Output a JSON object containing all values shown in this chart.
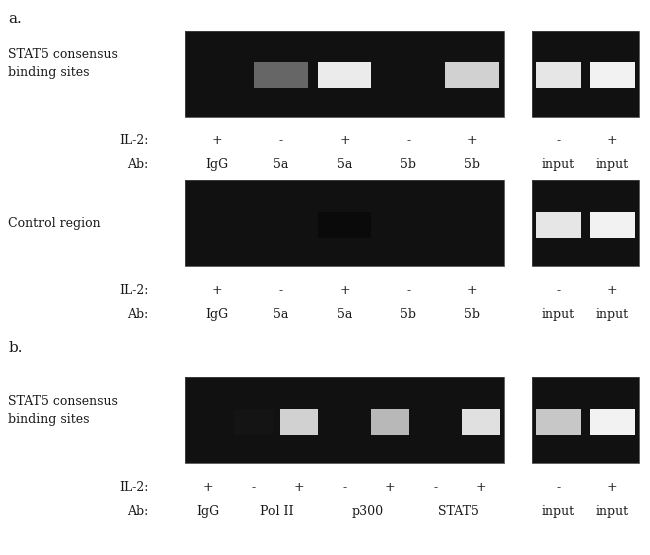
{
  "background_color": "#ffffff",
  "fig_width": 6.5,
  "fig_height": 5.55,
  "panel_a_label": "a.",
  "panel_b_label": "b.",
  "text_color": "#1a1a1a",
  "label_fontsize": 9,
  "panel_label_fontsize": 11,
  "a_row1_il2": [
    "+",
    "-",
    "+",
    "-",
    "+"
  ],
  "a_row1_ab": [
    "IgG",
    "5a",
    "5a",
    "5b",
    "5b"
  ],
  "a_row1_input_il2": [
    "-",
    "+"
  ],
  "a_row1_input_ab": [
    "input",
    "input"
  ],
  "a_row2_il2": [
    "+",
    "-",
    "+",
    "-",
    "+"
  ],
  "a_row2_ab": [
    "IgG",
    "5a",
    "5a",
    "5b",
    "5b"
  ],
  "a_row2_input_il2": [
    "-",
    "+"
  ],
  "a_row2_input_ab": [
    "input",
    "input"
  ],
  "b_row1_il2": [
    "+",
    "-",
    "+",
    "-",
    "+",
    "-",
    "+"
  ],
  "b_row1_input_il2": [
    "-",
    "+"
  ],
  "b_row1_input_ab": [
    "input",
    "input"
  ],
  "a_row1_bands": [
    0.0,
    0.4,
    0.92,
    0.0,
    0.82
  ],
  "a_row1_input_bands": [
    0.9,
    0.95
  ],
  "a_row2_bands": [
    0.0,
    0.0,
    0.04,
    0.0,
    0.0
  ],
  "a_row2_input_bands": [
    0.9,
    0.95
  ],
  "b_row1_bands": [
    0.0,
    0.08,
    0.82,
    0.0,
    0.72,
    0.0,
    0.88
  ],
  "b_row1_input_bands": [
    0.78,
    0.95
  ]
}
